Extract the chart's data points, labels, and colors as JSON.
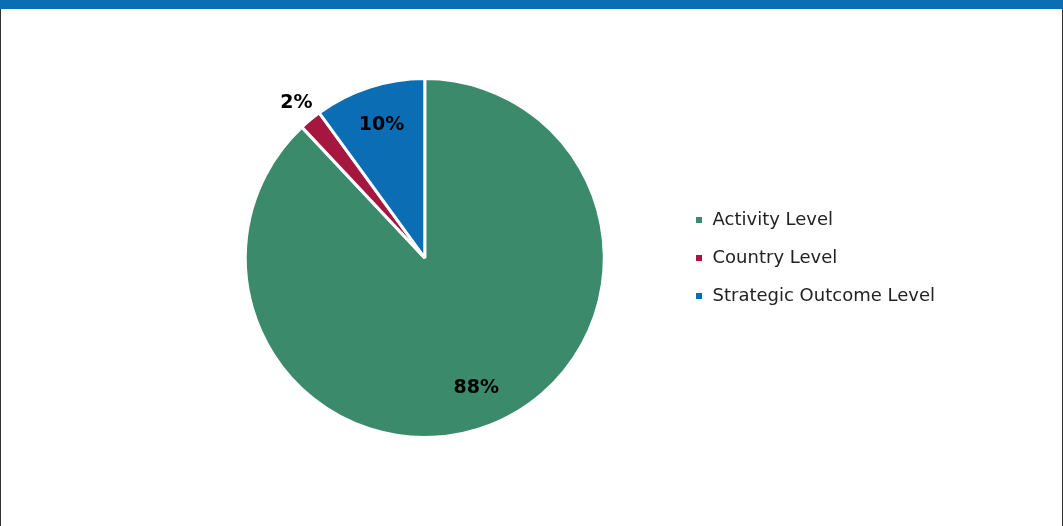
{
  "chart_data": {
    "type": "pie",
    "categories": [
      "Activity Level",
      "Country Level",
      "Strategic Outcome Level"
    ],
    "values": [
      88,
      2,
      10
    ],
    "colors": [
      "#3c8a6c",
      "#a6173f",
      "#0b6db4"
    ],
    "value_labels": [
      "88%",
      "2%",
      "10%"
    ],
    "legend": "right"
  }
}
